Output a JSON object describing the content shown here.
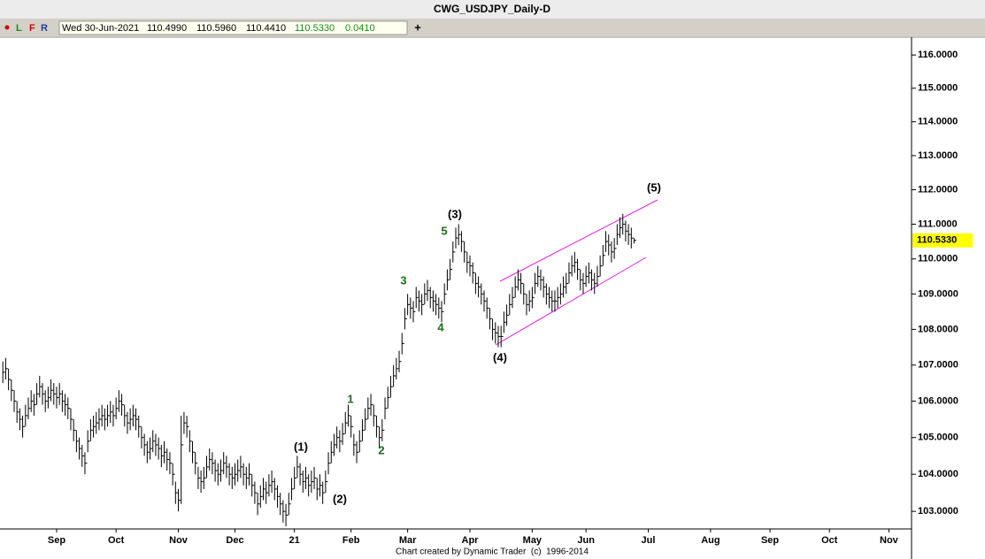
{
  "header": {
    "title": "CWG_USDJPY_Daily-D",
    "toolbar": [
      "L",
      "F",
      "R"
    ],
    "date": "Wed 30-Jun-2021",
    "open": "110.4990",
    "high": "110.5960",
    "low": "110.4410",
    "close": "110.5330",
    "change": "0.0410",
    "add_button": "+"
  },
  "footer": "Chart created by Dynamic Trader  (c)  1996-2014",
  "chart_data": {
    "type": "ohlc",
    "log_scale": true,
    "color": "#000000",
    "xlim": [
      -1,
      321
    ],
    "ylim": [
      102.53,
      116.46
    ],
    "xticks": [
      {
        "value": 19,
        "label": "Sep"
      },
      {
        "value": 40,
        "label": "Oct"
      },
      {
        "value": 62,
        "label": "Nov"
      },
      {
        "value": 82,
        "label": "Dec"
      },
      {
        "value": 103,
        "label": "21"
      },
      {
        "value": 123,
        "label": "Feb"
      },
      {
        "value": 143,
        "label": "Mar"
      },
      {
        "value": 165,
        "label": "Apr"
      },
      {
        "value": 187,
        "label": "May"
      },
      {
        "value": 206,
        "label": "Jun"
      },
      {
        "value": 228,
        "label": "Jul"
      },
      {
        "value": 250,
        "label": "Aug"
      },
      {
        "value": 271,
        "label": "Sep"
      },
      {
        "value": 292,
        "label": "Oct"
      },
      {
        "value": 313,
        "label": "Nov"
      }
    ],
    "yticks": [
      {
        "value": 103,
        "label": "103.0000"
      },
      {
        "value": 104,
        "label": "104.0000"
      },
      {
        "value": 105,
        "label": "105.0000"
      },
      {
        "value": 106,
        "label": "106.0000"
      },
      {
        "value": 107,
        "label": "107.0000"
      },
      {
        "value": 108,
        "label": "108.0000"
      },
      {
        "value": 109,
        "label": "109.0000"
      },
      {
        "value": 110,
        "label": "110.0000"
      },
      {
        "value": 111,
        "label": "111.0000"
      },
      {
        "value": 112,
        "label": "112.0000"
      },
      {
        "value": 113,
        "label": "113.0000"
      },
      {
        "value": 114,
        "label": "114.0000"
      },
      {
        "value": 115,
        "label": "115.0000"
      },
      {
        "value": 116,
        "label": "116.0000"
      }
    ],
    "last_price": {
      "value": 110.533,
      "label": "110.5330",
      "color": "#ffff00"
    },
    "annotations": [
      {
        "text": "(5)",
        "color": "#000000"
      },
      {
        "text": "(3)",
        "color": "#000000"
      },
      {
        "text": "5",
        "color": "#1a6e1a"
      },
      {
        "text": "3",
        "color": "#1a6e1a"
      },
      {
        "text": "4",
        "color": "#1a6e1a"
      },
      {
        "text": "(4)",
        "color": "#000000"
      },
      {
        "text": "1",
        "color": "#1a6e1a"
      },
      {
        "text": "2",
        "color": "#1a6e1a"
      },
      {
        "text": "(1)",
        "color": "#000000"
      },
      {
        "text": "(2)",
        "color": "#000000"
      }
    ],
    "close": [
      106.8,
      106.9,
      106.6,
      106.3,
      106.0,
      105.7,
      105.5,
      105.3,
      105.6,
      105.8,
      106.0,
      105.9,
      106.2,
      106.4,
      106.2,
      106.0,
      106.1,
      106.3,
      106.2,
      106.1,
      106.2,
      106.0,
      105.9,
      105.8,
      105.5,
      105.2,
      104.9,
      104.7,
      104.5,
      104.3,
      104.9,
      105.2,
      105.3,
      105.4,
      105.5,
      105.6,
      105.5,
      105.6,
      105.7,
      105.6,
      105.8,
      106.0,
      105.9,
      105.6,
      105.4,
      105.5,
      105.6,
      105.5,
      105.3,
      105.0,
      104.8,
      104.6,
      104.7,
      104.9,
      104.8,
      104.7,
      104.5,
      104.6,
      104.4,
      104.3,
      104.0,
      103.5,
      103.3,
      104.8,
      105.4,
      105.3,
      104.9,
      104.6,
      104.3,
      103.9,
      103.8,
      103.9,
      104.2,
      104.4,
      104.3,
      104.1,
      104.0,
      104.1,
      104.3,
      104.2,
      104.0,
      103.9,
      104.0,
      104.1,
      104.2,
      104.0,
      103.9,
      104.0,
      103.7,
      103.5,
      103.2,
      103.4,
      103.6,
      103.5,
      103.7,
      103.8,
      103.6,
      103.4,
      103.2,
      103.0,
      102.9,
      103.2,
      103.6,
      103.9,
      104.2,
      104.0,
      103.8,
      103.9,
      103.7,
      103.8,
      103.9,
      103.6,
      103.7,
      103.5,
      103.8,
      104.3,
      104.6,
      104.8,
      105.0,
      104.9,
      105.1,
      105.4,
      105.6,
      105.3,
      104.8,
      104.6,
      104.9,
      105.2,
      105.5,
      105.8,
      105.9,
      105.6,
      105.3,
      105.0,
      105.2,
      105.8,
      106.1,
      106.4,
      106.7,
      106.9,
      107.1,
      107.6,
      108.3,
      108.7,
      108.6,
      108.5,
      108.9,
      108.8,
      108.7,
      109.0,
      109.1,
      108.9,
      108.8,
      108.7,
      108.6,
      108.5,
      109.0,
      109.4,
      109.7,
      110.2,
      110.6,
      110.7,
      110.5,
      110.2,
      109.9,
      109.8,
      109.6,
      109.3,
      109.2,
      109.0,
      108.8,
      108.6,
      108.3,
      108.0,
      107.9,
      107.8,
      107.8,
      108.2,
      108.4,
      108.7,
      108.9,
      109.2,
      109.4,
      109.3,
      109.0,
      108.7,
      108.8,
      108.9,
      109.3,
      109.5,
      109.4,
      109.2,
      109.0,
      108.9,
      108.8,
      108.8,
      108.9,
      109.0,
      109.2,
      109.3,
      109.6,
      109.8,
      109.9,
      109.7,
      109.4,
      109.3,
      109.5,
      109.6,
      109.4,
      109.3,
      109.5,
      109.8,
      110.1,
      110.5,
      110.4,
      110.2,
      110.3,
      110.7,
      110.9,
      111.0,
      110.8,
      110.7,
      110.6,
      110.533
    ],
    "high": [
      107.1,
      107.2,
      106.9,
      106.6,
      106.3,
      106.0,
      105.8,
      105.6,
      105.9,
      106.1,
      106.3,
      106.2,
      106.5,
      106.7,
      106.5,
      106.3,
      106.4,
      106.6,
      106.5,
      106.4,
      106.5,
      106.3,
      106.2,
      106.1,
      105.8,
      105.5,
      105.2,
      105.0,
      104.8,
      104.6,
      105.2,
      105.5,
      105.6,
      105.7,
      105.8,
      105.9,
      105.8,
      105.9,
      106.0,
      105.9,
      106.1,
      106.3,
      106.2,
      105.9,
      105.7,
      105.8,
      105.9,
      105.8,
      105.6,
      105.3,
      105.1,
      104.9,
      105.0,
      105.2,
      105.1,
      105.0,
      104.8,
      104.9,
      104.7,
      104.6,
      104.3,
      103.8,
      103.6,
      105.6,
      105.7,
      105.6,
      105.2,
      104.9,
      104.6,
      104.2,
      104.1,
      104.2,
      104.5,
      104.7,
      104.6,
      104.4,
      104.3,
      104.4,
      104.6,
      104.5,
      104.3,
      104.2,
      104.3,
      104.4,
      104.5,
      104.3,
      104.2,
      104.3,
      104.0,
      103.8,
      103.5,
      103.7,
      103.9,
      103.8,
      104.0,
      104.1,
      103.9,
      103.7,
      103.5,
      103.3,
      103.2,
      103.5,
      103.9,
      104.2,
      104.5,
      104.3,
      104.1,
      104.2,
      104.0,
      104.1,
      104.2,
      103.9,
      104.0,
      103.8,
      104.1,
      104.6,
      104.9,
      105.1,
      105.3,
      105.2,
      105.4,
      105.7,
      105.9,
      105.6,
      105.1,
      104.9,
      105.2,
      105.5,
      105.8,
      106.1,
      106.2,
      105.9,
      105.6,
      105.3,
      105.5,
      106.1,
      106.4,
      106.7,
      107.0,
      107.2,
      107.4,
      107.9,
      108.6,
      109.0,
      108.9,
      108.8,
      109.2,
      109.1,
      109.0,
      109.3,
      109.4,
      109.2,
      109.1,
      109.0,
      108.9,
      108.8,
      109.3,
      109.7,
      110.0,
      110.5,
      110.9,
      111.0,
      110.8,
      110.5,
      110.2,
      110.1,
      109.9,
      109.6,
      109.5,
      109.3,
      109.1,
      108.9,
      108.6,
      108.3,
      108.2,
      108.1,
      108.1,
      108.5,
      108.7,
      109.0,
      109.2,
      109.5,
      109.7,
      109.6,
      109.3,
      109.0,
      109.1,
      109.2,
      109.6,
      109.8,
      109.7,
      109.5,
      109.3,
      109.2,
      109.1,
      109.1,
      109.2,
      109.3,
      109.5,
      109.6,
      109.9,
      110.1,
      110.2,
      110.0,
      109.7,
      109.6,
      109.8,
      109.9,
      109.7,
      109.6,
      109.8,
      110.1,
      110.4,
      110.8,
      110.7,
      110.5,
      110.6,
      111.0,
      111.2,
      111.3,
      111.1,
      111.0,
      110.9,
      110.596
    ],
    "low": [
      106.5,
      106.6,
      106.3,
      106.0,
      105.7,
      105.4,
      105.2,
      105.0,
      105.3,
      105.5,
      105.7,
      105.6,
      105.9,
      106.1,
      105.9,
      105.7,
      105.8,
      106.0,
      105.9,
      105.8,
      105.9,
      105.7,
      105.6,
      105.5,
      105.2,
      104.9,
      104.6,
      104.4,
      104.2,
      104.0,
      104.6,
      104.9,
      105.0,
      105.1,
      105.2,
      105.3,
      105.2,
      105.3,
      105.4,
      105.3,
      105.5,
      105.7,
      105.6,
      105.3,
      105.1,
      105.2,
      105.3,
      105.2,
      105.0,
      104.7,
      104.5,
      104.3,
      104.4,
      104.6,
      104.5,
      104.4,
      104.2,
      104.3,
      104.1,
      104.0,
      103.7,
      103.2,
      103.0,
      103.2,
      105.1,
      105.0,
      104.6,
      104.3,
      104.0,
      103.6,
      103.5,
      103.6,
      103.9,
      104.1,
      104.0,
      103.8,
      103.7,
      103.8,
      104.0,
      103.9,
      103.7,
      103.6,
      103.7,
      103.8,
      103.9,
      103.7,
      103.6,
      103.7,
      103.4,
      103.2,
      102.9,
      103.1,
      103.3,
      103.2,
      103.4,
      103.5,
      103.3,
      103.1,
      102.9,
      102.7,
      102.6,
      102.9,
      103.3,
      103.6,
      103.9,
      103.7,
      103.5,
      103.6,
      103.4,
      103.5,
      103.6,
      103.3,
      103.4,
      103.2,
      103.5,
      104.0,
      104.3,
      104.5,
      104.7,
      104.6,
      104.8,
      105.1,
      105.3,
      105.0,
      104.5,
      104.3,
      104.6,
      104.9,
      105.2,
      105.5,
      105.6,
      105.3,
      105.0,
      104.7,
      104.9,
      105.5,
      105.8,
      106.1,
      106.4,
      106.6,
      106.8,
      107.3,
      108.0,
      108.4,
      108.3,
      108.2,
      108.6,
      108.5,
      108.4,
      108.7,
      108.8,
      108.6,
      108.5,
      108.4,
      108.3,
      108.2,
      108.7,
      109.1,
      109.4,
      109.9,
      110.3,
      110.4,
      110.2,
      109.9,
      109.6,
      109.5,
      109.3,
      109.0,
      108.9,
      108.7,
      108.5,
      108.3,
      108.0,
      107.7,
      107.6,
      107.5,
      107.5,
      107.9,
      108.1,
      108.4,
      108.6,
      108.9,
      109.1,
      109.0,
      108.7,
      108.4,
      108.5,
      108.6,
      109.0,
      109.2,
      109.1,
      108.9,
      108.7,
      108.6,
      108.5,
      108.5,
      108.6,
      108.7,
      108.9,
      109.0,
      109.3,
      109.5,
      109.6,
      109.4,
      109.1,
      109.0,
      109.2,
      109.3,
      109.1,
      109.0,
      109.2,
      109.5,
      109.8,
      110.2,
      110.1,
      109.9,
      110.0,
      110.4,
      110.6,
      110.7,
      110.5,
      110.4,
      110.3,
      110.441
    ]
  }
}
